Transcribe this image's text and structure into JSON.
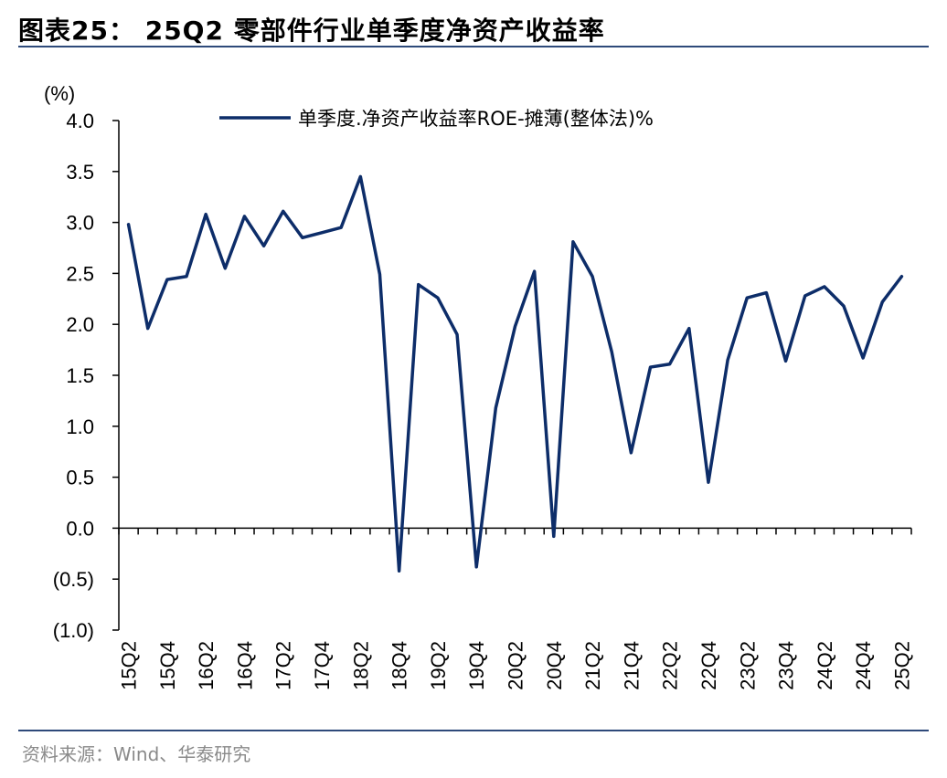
{
  "figure": {
    "title": "图表25：  25Q2 零部件行业单季度净资产收益率",
    "source": "资料来源：Wind、华泰研究"
  },
  "colors": {
    "line": "#0d2d69",
    "rule": "#2e4a7a",
    "axis": "#000000"
  },
  "chart_data": {
    "type": "line",
    "ylabel": "(%)",
    "ylim": [
      -1.0,
      4.0
    ],
    "yticks": [
      4.0,
      3.5,
      3.0,
      2.5,
      2.0,
      1.5,
      1.0,
      0.5,
      0.0,
      -0.5,
      -1.0
    ],
    "ytick_labels": [
      "4.0",
      "3.5",
      "3.0",
      "2.5",
      "2.0",
      "1.5",
      "1.0",
      "0.5",
      "0.0",
      "(0.5)",
      "(1.0)"
    ],
    "grid": false,
    "legend_position": "top",
    "categories": [
      "15Q2",
      "15Q3",
      "15Q4",
      "16Q1",
      "16Q2",
      "16Q3",
      "16Q4",
      "17Q1",
      "17Q2",
      "17Q3",
      "17Q4",
      "18Q1",
      "18Q2",
      "18Q3",
      "18Q4",
      "19Q1",
      "19Q2",
      "19Q3",
      "19Q4",
      "20Q1",
      "20Q2",
      "20Q3",
      "20Q4",
      "21Q1",
      "21Q2",
      "21Q3",
      "21Q4",
      "22Q1",
      "22Q2",
      "22Q3",
      "22Q4",
      "23Q1",
      "23Q2",
      "23Q3",
      "23Q4",
      "24Q1",
      "24Q2",
      "24Q3",
      "24Q4",
      "25Q1",
      "25Q2"
    ],
    "xtick_labels": [
      "15Q2",
      "15Q4",
      "16Q2",
      "16Q4",
      "17Q2",
      "17Q4",
      "18Q2",
      "18Q4",
      "19Q2",
      "19Q4",
      "20Q2",
      "20Q4",
      "21Q2",
      "21Q4",
      "22Q2",
      "22Q4",
      "23Q2",
      "23Q4",
      "24Q2",
      "24Q4",
      "25Q2"
    ],
    "series": [
      {
        "name": "单季度.净资产收益率ROE-摊薄(整体法)%",
        "values": [
          2.98,
          1.96,
          2.44,
          2.47,
          3.08,
          2.55,
          3.06,
          2.77,
          3.11,
          2.85,
          2.9,
          2.95,
          3.45,
          2.49,
          -0.42,
          2.39,
          2.26,
          1.9,
          -0.38,
          1.18,
          1.98,
          2.52,
          -0.08,
          2.81,
          2.47,
          1.73,
          0.74,
          1.58,
          1.61,
          1.96,
          0.45,
          1.65,
          2.26,
          2.31,
          1.64,
          2.28,
          2.37,
          2.18,
          1.67,
          2.22,
          2.47
        ]
      }
    ]
  }
}
